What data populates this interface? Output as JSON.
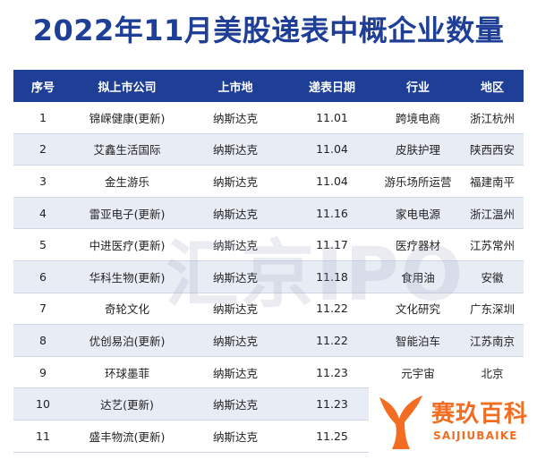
{
  "title": "2022年11月美股递表中概企业数量",
  "headers": [
    "序号",
    "拟上市公司",
    "上市地",
    "递表日期",
    "行业",
    "地区"
  ],
  "rows": [
    [
      "1",
      "锦嵘健康(更新)",
      "纳斯达克",
      "11.01",
      "跨境电商",
      "浙江杭州"
    ],
    [
      "2",
      "艾鑫生活国际",
      "纳斯达克",
      "11.04",
      "皮肤护理",
      "陕西西安"
    ],
    [
      "3",
      "金生游乐",
      "纳斯达克",
      "11.04",
      "游乐场所运营",
      "福建南平"
    ],
    [
      "4",
      "雷亚电子(更新)",
      "纳斯达克",
      "11.16",
      "家电电源",
      "浙江温州"
    ],
    [
      "5",
      "中进医疗(更新)",
      "纳斯达克",
      "11.17",
      "医疗器材",
      "江苏常州"
    ],
    [
      "6",
      "华科生物(更新)",
      "纳斯达克",
      "11.18",
      "食用油",
      "安徽"
    ],
    [
      "7",
      "奇轮文化",
      "纳斯达克",
      "11.22",
      "文化研究",
      "广东深圳"
    ],
    [
      "8",
      "优创易泊(更新)",
      "纳斯达克",
      "11.22",
      "智能泊车",
      "江苏南京"
    ],
    [
      "9",
      "环球墨菲",
      "纳斯达克",
      "11.23",
      "元宇宙",
      "北京"
    ],
    [
      "10",
      "达艺(更新)",
      "纳斯达克",
      "11.23",
      "家",
      ""
    ],
    [
      "11",
      "盛丰物流(更新)",
      "纳斯达克",
      "11.25",
      "",
      ""
    ]
  ],
  "watermark": "汇京IPO",
  "logo": {
    "name": "赛玖百科",
    "sub": "SAIJIUBAIKE",
    "color": "#f26d21"
  },
  "colors": {
    "header_bg": "#1f3f96",
    "title": "#1f3f96",
    "row_alt": "#e8ecf5"
  }
}
